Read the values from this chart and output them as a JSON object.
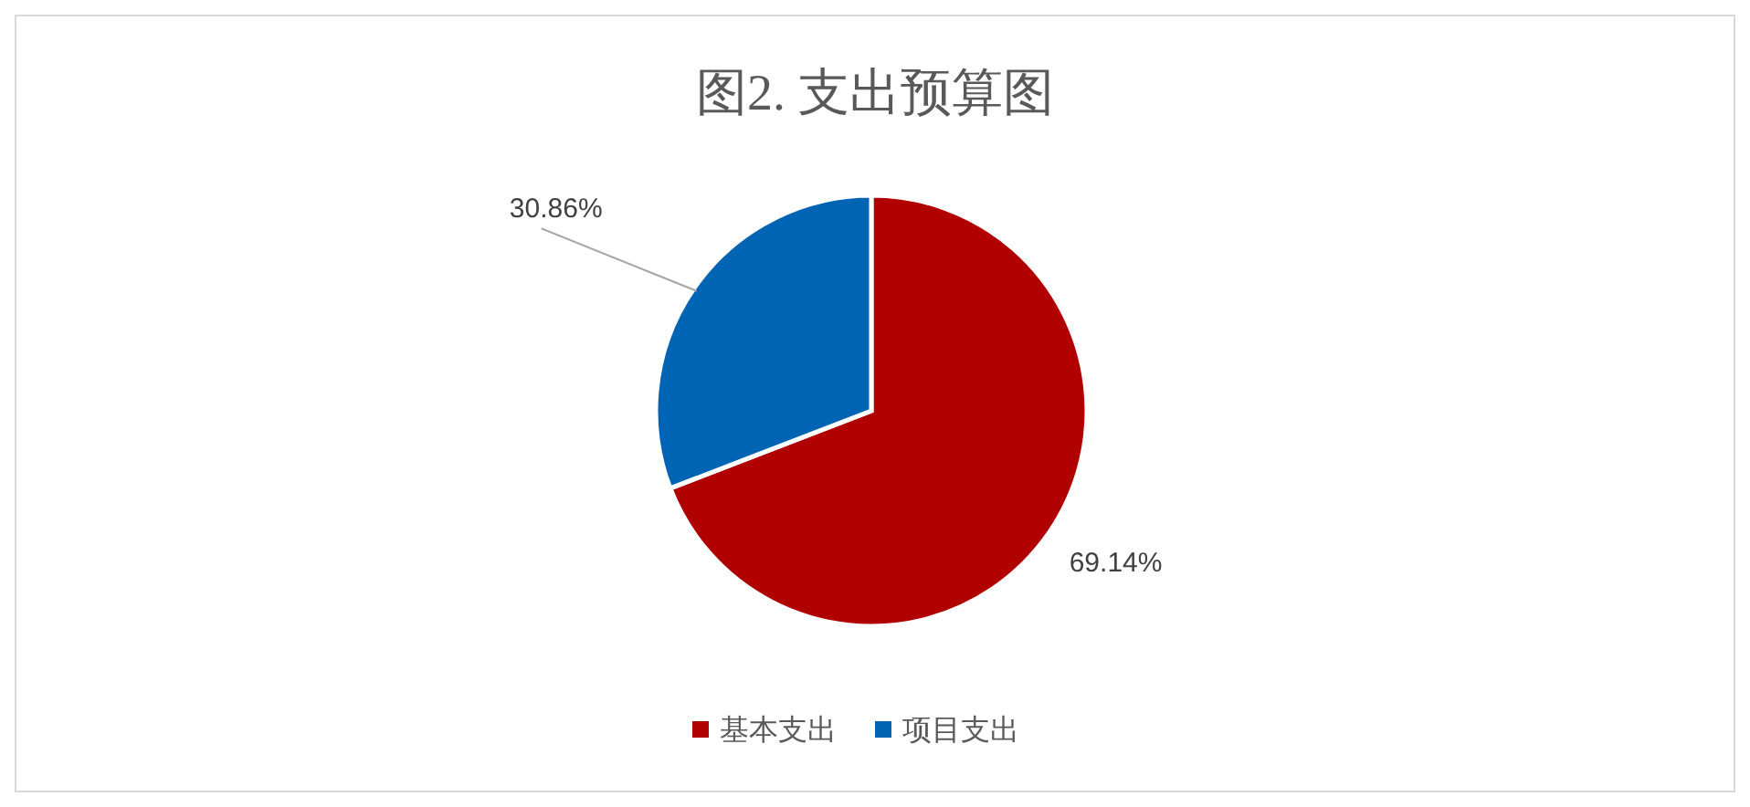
{
  "chart_data": {
    "type": "pie",
    "title": "图2. 支出预算图",
    "categories": [
      "基本支出",
      "项目支出"
    ],
    "values": [
      69.14,
      30.86
    ],
    "colors": [
      "#b00000",
      "#0064b4"
    ],
    "value_labels": [
      "69.14%",
      "30.86%"
    ],
    "legend": "bottom"
  }
}
